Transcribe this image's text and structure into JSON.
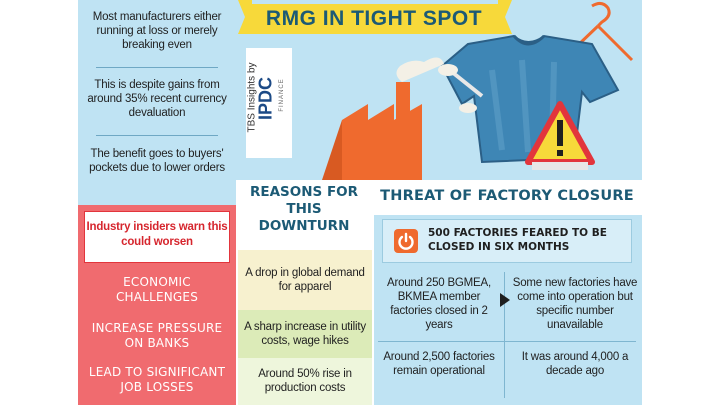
{
  "title": "RMG IN TIGHT SPOT",
  "brand": {
    "line1": "TBS Insights by",
    "logo": "IPDC",
    "line3": "FINANCE"
  },
  "left_points": [
    "Most manufacturers either running at loss or merely breaking even",
    "This is despite gains from around 35% recent currency devaluation",
    "The benefit goes to buyers' pockets due to lower orders"
  ],
  "warning": "Industry insiders warn this could worsen",
  "consequences": [
    "ECONOMIC CHALLENGES",
    "INCREASE PRESSURE ON BANKS",
    "LEAD TO SIGNIFICANT JOB LOSSES"
  ],
  "reasons": {
    "title": "REASONS FOR THIS DOWNTURN",
    "items": [
      "A drop in global demand for apparel",
      "A sharp increase in utility costs, wage hikes",
      "Around 50% rise in production costs"
    ]
  },
  "threat": {
    "title": "THREAT OF FACTORY CLOSURE",
    "headline": "500 FACTORIES FEARED TO BE CLOSED IN SIX MONTHS",
    "cells": [
      "Around 250 BGMEA, BKMEA member factories closed in 2 years",
      "Some new factories have come into operation but specific number unavailable",
      "Around 2,500 factories remain operational",
      "It was around 4,000 a decade ago"
    ]
  },
  "colors": {
    "light_blue": "#bfe3f3",
    "red": "#f06b6f",
    "yellow": "#f7d93a",
    "green": "#dcebb8",
    "navy": "#1c5a75"
  }
}
